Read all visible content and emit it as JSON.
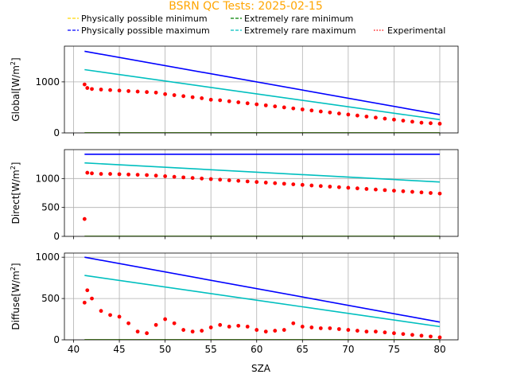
{
  "figure": {
    "title": "BSRN QC Tests: 2025-02-15",
    "title_color": "#ffa500",
    "xlabel": "SZA"
  },
  "legend": [
    {
      "label": "Physically possible minimum",
      "color": "#ffd700",
      "style": "dashed"
    },
    {
      "label": "Extremely rare minimum",
      "color": "#008000",
      "style": "dashed"
    },
    {
      "label": "Physically possible maximum",
      "color": "#0000ff",
      "style": "dashed"
    },
    {
      "label": "Extremely rare maximum",
      "color": "#00bfbf",
      "style": "dashed"
    },
    {
      "label": "Experimental",
      "color": "#ff0000",
      "style": "dotted"
    }
  ],
  "chart_data": [
    {
      "type": "line",
      "ylabel": "Global",
      "unit_base": "[W/m",
      "unit_sup": "2",
      "unit_end": "]",
      "xlim": [
        39,
        82
      ],
      "ylim": [
        0,
        1700
      ],
      "xticks": [
        40,
        45,
        50,
        55,
        60,
        65,
        70,
        75,
        80
      ],
      "yticks": [
        0,
        1000
      ],
      "grid": true,
      "series": [
        {
          "name": "Physically possible minimum",
          "color": "#ffd700",
          "x": [
            41.2,
            80
          ],
          "y": [
            0,
            0
          ]
        },
        {
          "name": "Extremely rare minimum",
          "color": "#008000",
          "x": [
            41.2,
            80
          ],
          "y": [
            0,
            0
          ]
        },
        {
          "name": "Physically possible maximum",
          "color": "#0000ff",
          "x": [
            41.2,
            80
          ],
          "y": [
            1600,
            360
          ]
        },
        {
          "name": "Extremely rare maximum",
          "color": "#00bfbf",
          "x": [
            41.2,
            80
          ],
          "y": [
            1240,
            260
          ]
        },
        {
          "name": "Experimental",
          "color": "#ff0000",
          "type": "scatter",
          "x": [
            41.2,
            41.5,
            42,
            43,
            44,
            45,
            46,
            47,
            48,
            49,
            50,
            51,
            52,
            53,
            54,
            55,
            56,
            57,
            58,
            59,
            60,
            61,
            62,
            63,
            64,
            65,
            66,
            67,
            68,
            69,
            70,
            71,
            72,
            73,
            74,
            75,
            76,
            77,
            78,
            79,
            80
          ],
          "y": [
            950,
            880,
            860,
            850,
            840,
            830,
            820,
            810,
            800,
            790,
            760,
            740,
            720,
            700,
            680,
            650,
            640,
            620,
            600,
            580,
            560,
            540,
            520,
            500,
            480,
            460,
            440,
            420,
            400,
            380,
            360,
            340,
            320,
            300,
            280,
            260,
            240,
            220,
            200,
            190,
            180
          ]
        }
      ]
    },
    {
      "type": "line",
      "ylabel": "Direct",
      "unit_base": "[W/m",
      "unit_sup": "2",
      "unit_end": "]",
      "xlim": [
        39,
        82
      ],
      "ylim": [
        0,
        1500
      ],
      "xticks": [
        40,
        45,
        50,
        55,
        60,
        65,
        70,
        75,
        80
      ],
      "yticks": [
        0,
        500,
        1000
      ],
      "grid": true,
      "series": [
        {
          "name": "Physically possible minimum",
          "color": "#ffd700",
          "x": [
            41.2,
            80
          ],
          "y": [
            0,
            0
          ]
        },
        {
          "name": "Extremely rare minimum",
          "color": "#008000",
          "x": [
            41.2,
            80
          ],
          "y": [
            0,
            0
          ]
        },
        {
          "name": "Physically possible maximum",
          "color": "#0000ff",
          "x": [
            41.2,
            80
          ],
          "y": [
            1420,
            1420
          ]
        },
        {
          "name": "Extremely rare maximum",
          "color": "#00bfbf",
          "x": [
            41.2,
            80
          ],
          "y": [
            1270,
            940
          ]
        },
        {
          "name": "Experimental",
          "color": "#ff0000",
          "type": "scatter",
          "x": [
            41.2,
            41.5,
            42,
            43,
            44,
            45,
            46,
            47,
            48,
            49,
            50,
            51,
            52,
            53,
            54,
            55,
            56,
            57,
            58,
            59,
            60,
            61,
            62,
            63,
            64,
            65,
            66,
            67,
            68,
            69,
            70,
            71,
            72,
            73,
            74,
            75,
            76,
            77,
            78,
            79,
            80
          ],
          "y": [
            300,
            1100,
            1090,
            1080,
            1080,
            1075,
            1070,
            1065,
            1060,
            1050,
            1040,
            1030,
            1020,
            1010,
            1000,
            990,
            980,
            970,
            960,
            950,
            940,
            930,
            920,
            910,
            900,
            890,
            880,
            870,
            860,
            850,
            840,
            830,
            820,
            810,
            800,
            790,
            780,
            770,
            760,
            750,
            740
          ]
        }
      ]
    },
    {
      "type": "line",
      "ylabel": "Diffuse",
      "unit_base": "[W/m",
      "unit_sup": "2",
      "unit_end": "]",
      "xlim": [
        39,
        82
      ],
      "ylim": [
        0,
        1050
      ],
      "xticks": [
        40,
        45,
        50,
        55,
        60,
        65,
        70,
        75,
        80
      ],
      "yticks": [
        0,
        500,
        1000
      ],
      "grid": true,
      "series": [
        {
          "name": "Physically possible minimum",
          "color": "#ffd700",
          "x": [
            41.2,
            80
          ],
          "y": [
            0,
            0
          ]
        },
        {
          "name": "Extremely rare minimum",
          "color": "#008000",
          "x": [
            41.2,
            80
          ],
          "y": [
            0,
            0
          ]
        },
        {
          "name": "Physically possible maximum",
          "color": "#0000ff",
          "x": [
            41.2,
            80
          ],
          "y": [
            1000,
            215
          ]
        },
        {
          "name": "Extremely rare maximum",
          "color": "#00bfbf",
          "x": [
            41.2,
            80
          ],
          "y": [
            780,
            160
          ]
        },
        {
          "name": "Experimental",
          "color": "#ff0000",
          "type": "scatter",
          "x": [
            41.2,
            41.5,
            42,
            43,
            44,
            45,
            46,
            47,
            48,
            49,
            50,
            51,
            52,
            53,
            54,
            55,
            56,
            57,
            58,
            59,
            60,
            61,
            62,
            63,
            64,
            65,
            66,
            67,
            68,
            69,
            70,
            71,
            72,
            73,
            74,
            75,
            76,
            77,
            78,
            79,
            80
          ],
          "y": [
            450,
            600,
            500,
            350,
            300,
            280,
            200,
            100,
            80,
            180,
            250,
            200,
            120,
            100,
            110,
            150,
            180,
            160,
            170,
            160,
            120,
            100,
            110,
            120,
            200,
            160,
            150,
            140,
            140,
            130,
            120,
            110,
            100,
            100,
            90,
            80,
            70,
            60,
            50,
            40,
            30
          ]
        }
      ]
    }
  ]
}
